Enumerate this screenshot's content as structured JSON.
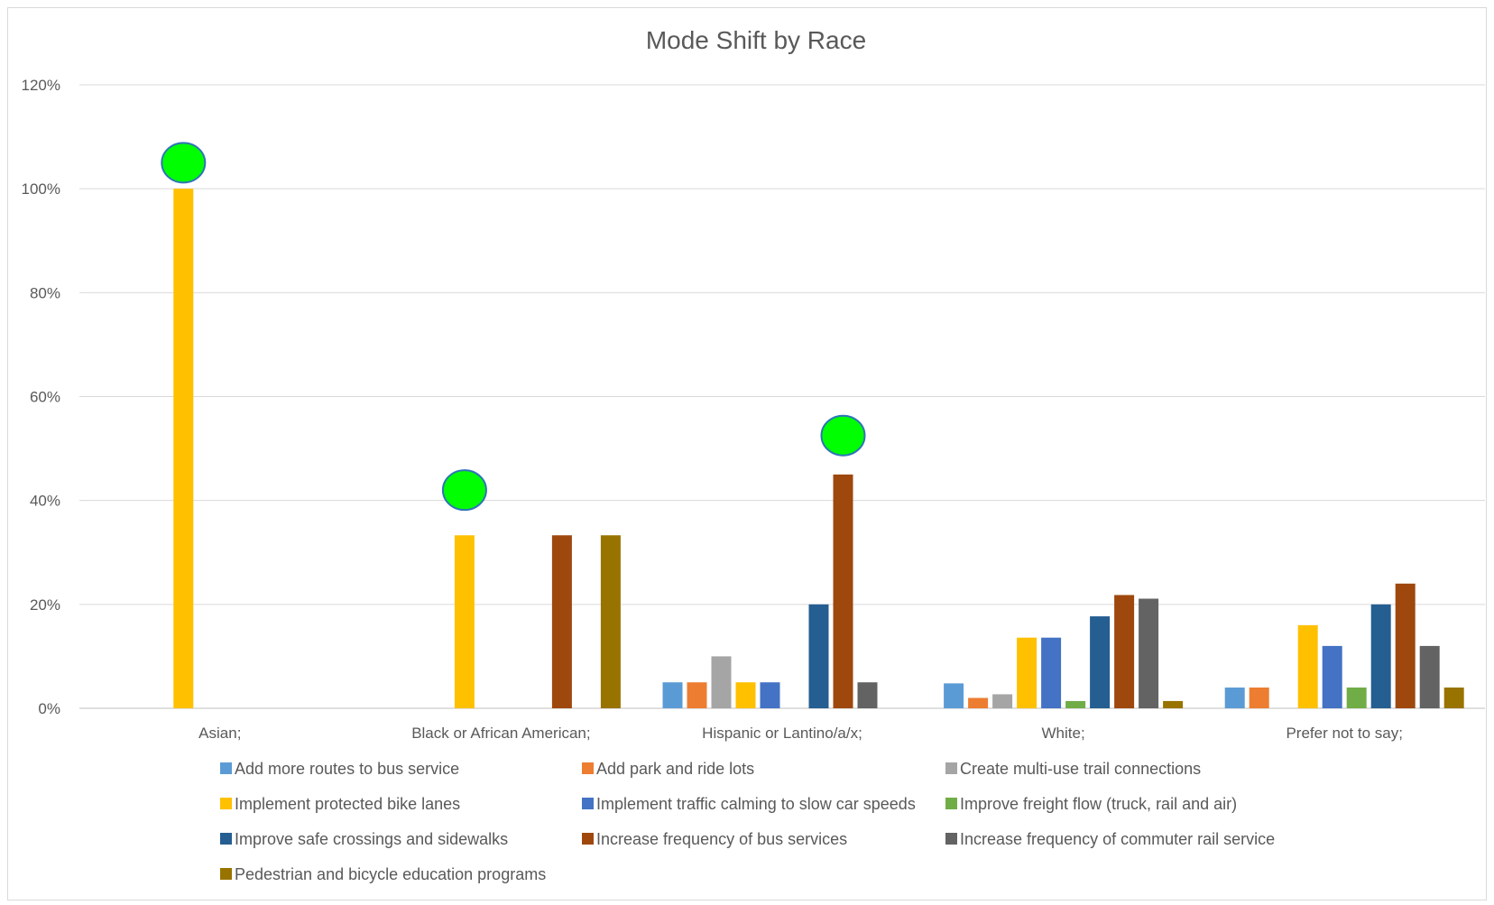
{
  "chart_data": {
    "type": "bar",
    "title": "Mode Shift by Race",
    "xlabel": "",
    "ylabel": "",
    "ylim": [
      0,
      1.2
    ],
    "yticks": [
      0,
      0.2,
      0.4,
      0.6,
      0.8,
      1.0,
      1.2
    ],
    "ytick_labels": [
      "0%",
      "20%",
      "40%",
      "60%",
      "80%",
      "100%",
      "120%"
    ],
    "grid": true,
    "legend_position": "bottom",
    "categories": [
      "Asian;",
      "Black or African American;",
      "Hispanic or Lantino/a/x;",
      "White;",
      "Prefer not to say;"
    ],
    "series": [
      {
        "name": "Add more routes to bus service",
        "color": "#5b9bd5",
        "values": [
          0,
          0,
          0.05,
          0.048,
          0.04
        ]
      },
      {
        "name": "Add park and ride lots",
        "color": "#ed7d31",
        "values": [
          0,
          0,
          0.05,
          0.02,
          0.04
        ]
      },
      {
        "name": "Create multi-use trail connections",
        "color": "#a5a5a5",
        "values": [
          0,
          0,
          0.1,
          0.027,
          0
        ]
      },
      {
        "name": "Implement protected bike lanes",
        "color": "#ffc000",
        "values": [
          1.0,
          0.333,
          0.05,
          0.136,
          0.16
        ]
      },
      {
        "name": "Implement traffic calming to slow car speeds",
        "color": "#4472c4",
        "values": [
          0,
          0,
          0.05,
          0.136,
          0.12
        ]
      },
      {
        "name": "Improve freight flow (truck, rail and air)",
        "color": "#70ad47",
        "values": [
          0,
          0,
          0,
          0.014,
          0.04
        ]
      },
      {
        "name": "Improve safe crossings and sidewalks",
        "color": "#255e91",
        "values": [
          0,
          0,
          0.2,
          0.177,
          0.2
        ]
      },
      {
        "name": "Increase frequency of bus services",
        "color": "#9e480e",
        "values": [
          0,
          0.333,
          0.45,
          0.218,
          0.24
        ]
      },
      {
        "name": "Increase frequency of commuter rail service",
        "color": "#636363",
        "values": [
          0,
          0,
          0.05,
          0.211,
          0.12
        ]
      },
      {
        "name": "Pedestrian and bicycle education programs",
        "color": "#997300",
        "values": [
          0,
          0.333,
          0,
          0.014,
          0.04
        ]
      }
    ],
    "annotations": [
      {
        "type": "marker",
        "category": "Asian;",
        "series": "Implement protected bike lanes",
        "y": 1.05,
        "color": "#00ff00",
        "outline": "#2e75b6"
      },
      {
        "type": "marker",
        "category": "Black or African American;",
        "series": "Implement protected bike lanes",
        "y": 0.42,
        "color": "#00ff00",
        "outline": "#2e75b6"
      },
      {
        "type": "marker",
        "category": "Hispanic or Lantino/a/x;",
        "series": "Increase frequency of bus services",
        "y": 0.525,
        "color": "#00ff00",
        "outline": "#2e75b6"
      }
    ]
  }
}
